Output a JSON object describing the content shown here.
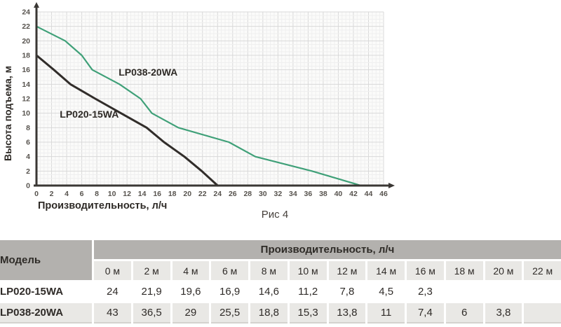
{
  "chart_data": {
    "type": "line",
    "title": "",
    "xlabel": "Производительность, л/ч",
    "ylabel": "Высота подъема, м",
    "caption": "Рис 4",
    "xlim": [
      0,
      46
    ],
    "ylim": [
      0,
      24
    ],
    "xtick_step": 2,
    "ytick_step": 2,
    "minor_step": 0.5,
    "grid": true,
    "legend_position": "inline-labels",
    "series": [
      {
        "name": "LP020-15WA",
        "color": "#312d2a",
        "stroke_width": 3,
        "label_pos": {
          "x": 7.0,
          "y": 9.4
        },
        "points": [
          [
            0,
            18
          ],
          [
            2.3,
            16
          ],
          [
            4.5,
            14
          ],
          [
            7.8,
            12
          ],
          [
            11.2,
            10
          ],
          [
            14.6,
            8
          ],
          [
            16.9,
            6
          ],
          [
            19.6,
            4
          ],
          [
            21.9,
            2
          ],
          [
            24,
            0
          ]
        ]
      },
      {
        "name": "LP038-20WA",
        "color": "#3fa078",
        "stroke_width": 2.2,
        "label_pos": {
          "x": 14.8,
          "y": 15.2
        },
        "points": [
          [
            0,
            22
          ],
          [
            3.8,
            20
          ],
          [
            6,
            18
          ],
          [
            7.4,
            16
          ],
          [
            11,
            14
          ],
          [
            13.8,
            12
          ],
          [
            15.3,
            10
          ],
          [
            18.8,
            8
          ],
          [
            25.5,
            6
          ],
          [
            29,
            4
          ],
          [
            36.5,
            2
          ],
          [
            43,
            0
          ]
        ]
      }
    ]
  },
  "table": {
    "model_header": "Модель",
    "group_header": "Производительность, л/ч",
    "columns": [
      "0 м",
      "2 м",
      "4 м",
      "6 м",
      "8 м",
      "10 м",
      "12 м",
      "14 м",
      "16 м",
      "18 м",
      "20 м",
      "22 м"
    ],
    "rows": [
      {
        "model": "LP020-15WA",
        "values": [
          "24",
          "21,9",
          "19,6",
          "16,9",
          "14,6",
          "11,2",
          "7,8",
          "4,5",
          "2,3",
          "",
          "",
          ""
        ]
      },
      {
        "model": "LP038-20WA",
        "values": [
          "43",
          "36,5",
          "29",
          "25,5",
          "18,8",
          "15,3",
          "13,8",
          "11",
          "7,4",
          "6",
          "3,8",
          ""
        ]
      }
    ]
  },
  "colors": {
    "axis": "#3a3734",
    "tick_text": "#57534e",
    "label_text": "#2e2a26",
    "grid_major": "#d9d9d9",
    "grid_minor": "#efefef",
    "plot_bg": "#fbfbfa",
    "header_bg": "#b3b1ae",
    "alt_bg": "#e9e8e5"
  }
}
